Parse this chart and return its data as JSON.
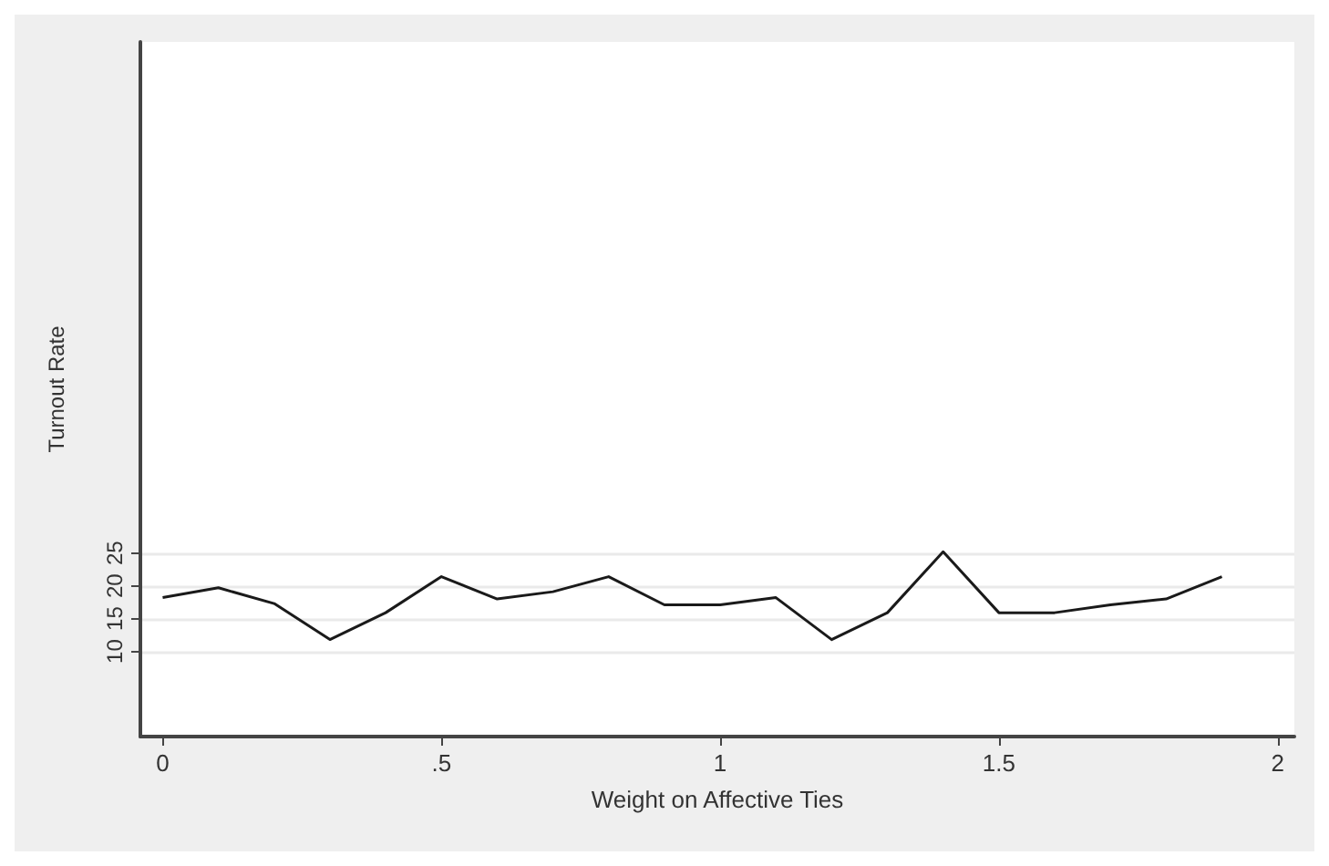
{
  "chart_data": {
    "type": "line",
    "xlabel": "Weight on Affective Ties",
    "ylabel": "Turnout Rate",
    "x": [
      0,
      0.1,
      0.2,
      0.3,
      0.4,
      0.5,
      0.6,
      0.7,
      0.8,
      0.9,
      1,
      1.1,
      1.2,
      1.3,
      1.4,
      1.5,
      1.6,
      1.7,
      1.8,
      1.9
    ],
    "series": [
      {
        "color": "#1a1a1a",
        "values": [
          18.2,
          19.7,
          17.3,
          11.8,
          15.9,
          21.4,
          18,
          19.1,
          21.4,
          17.1,
          17.1,
          18.2,
          11.8,
          15.9,
          25.2,
          15.9,
          15.9,
          17.1,
          18,
          21.4
        ]
      }
    ],
    "xlim": [
      -0.04,
      2.03
    ],
    "xticks": [
      0,
      {
        "value": 0.5,
        "label": ".5"
      },
      1,
      1.5,
      2
    ],
    "ylim": [
      -3,
      103
    ],
    "yticks": [
      10,
      15,
      20,
      25
    ],
    "grid": "y",
    "marker": "none",
    "line_style": "solid"
  }
}
